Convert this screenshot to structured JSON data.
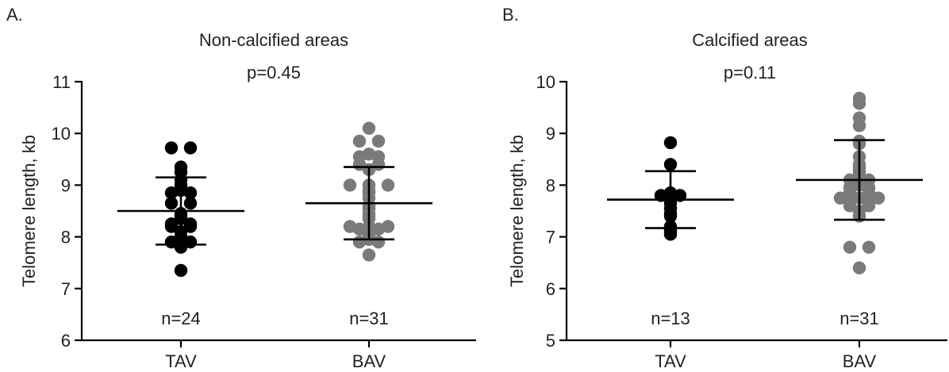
{
  "chart_data": [
    {
      "type": "scatter",
      "panel_label": "A.",
      "title": "Non-calcified areas",
      "p_value": "p=0.45",
      "ylabel": "Telomere length, kb",
      "ylim": [
        6,
        11
      ],
      "yticks": [
        6,
        7,
        8,
        9,
        10,
        11
      ],
      "categories": [
        "TAV",
        "BAV"
      ],
      "series": [
        {
          "category": "TAV",
          "n_label": "n=24",
          "color": "#000000",
          "mean": 8.5,
          "sd_upper": 9.15,
          "sd_lower": 7.85,
          "points": [
            9.72,
            9.72,
            9.35,
            9.25,
            9.1,
            9.0,
            8.9,
            8.85,
            8.85,
            8.65,
            8.65,
            8.45,
            8.4,
            8.35,
            8.25,
            8.25,
            8.2,
            8.2,
            8.1,
            8.0,
            7.9,
            7.9,
            7.8,
            7.35
          ]
        },
        {
          "category": "BAV",
          "n_label": "n=31",
          "color": "#7a7a7a",
          "mean": 8.65,
          "sd_upper": 9.35,
          "sd_lower": 7.95,
          "points": [
            10.1,
            9.85,
            9.85,
            9.6,
            9.55,
            9.55,
            9.4,
            9.4,
            9.3,
            9.0,
            9.0,
            9.0,
            8.9,
            8.85,
            8.75,
            8.6,
            8.55,
            8.45,
            8.4,
            8.35,
            8.2,
            8.2,
            8.2,
            8.15,
            8.15,
            8.1,
            8.0,
            7.95,
            7.9,
            7.9,
            7.65
          ]
        }
      ]
    },
    {
      "type": "scatter",
      "panel_label": "B.",
      "title": "Calcified areas",
      "p_value": "p=0.11",
      "ylabel": "Telomere length, kb",
      "ylim": [
        5,
        10
      ],
      "yticks": [
        5,
        6,
        7,
        8,
        9,
        10
      ],
      "categories": [
        "TAV",
        "BAV"
      ],
      "series": [
        {
          "category": "TAV",
          "n_label": "n=13",
          "color": "#000000",
          "mean": 7.72,
          "sd_upper": 8.27,
          "sd_lower": 7.17,
          "points": [
            8.82,
            8.4,
            7.85,
            7.8,
            7.8,
            7.65,
            7.55,
            7.45,
            7.4,
            7.2,
            7.15,
            7.1,
            7.05
          ]
        },
        {
          "category": "BAV",
          "n_label": "n=31",
          "color": "#7a7a7a",
          "mean": 8.1,
          "sd_upper": 8.87,
          "sd_lower": 7.33,
          "points": [
            9.68,
            9.58,
            9.3,
            9.15,
            8.85,
            8.8,
            8.55,
            8.4,
            8.35,
            8.3,
            8.25,
            8.15,
            8.1,
            8.1,
            8.0,
            7.95,
            7.95,
            7.85,
            7.85,
            7.8,
            7.8,
            7.75,
            7.75,
            7.75,
            7.6,
            7.6,
            7.5,
            7.4,
            6.8,
            6.8,
            6.4
          ]
        }
      ]
    }
  ]
}
